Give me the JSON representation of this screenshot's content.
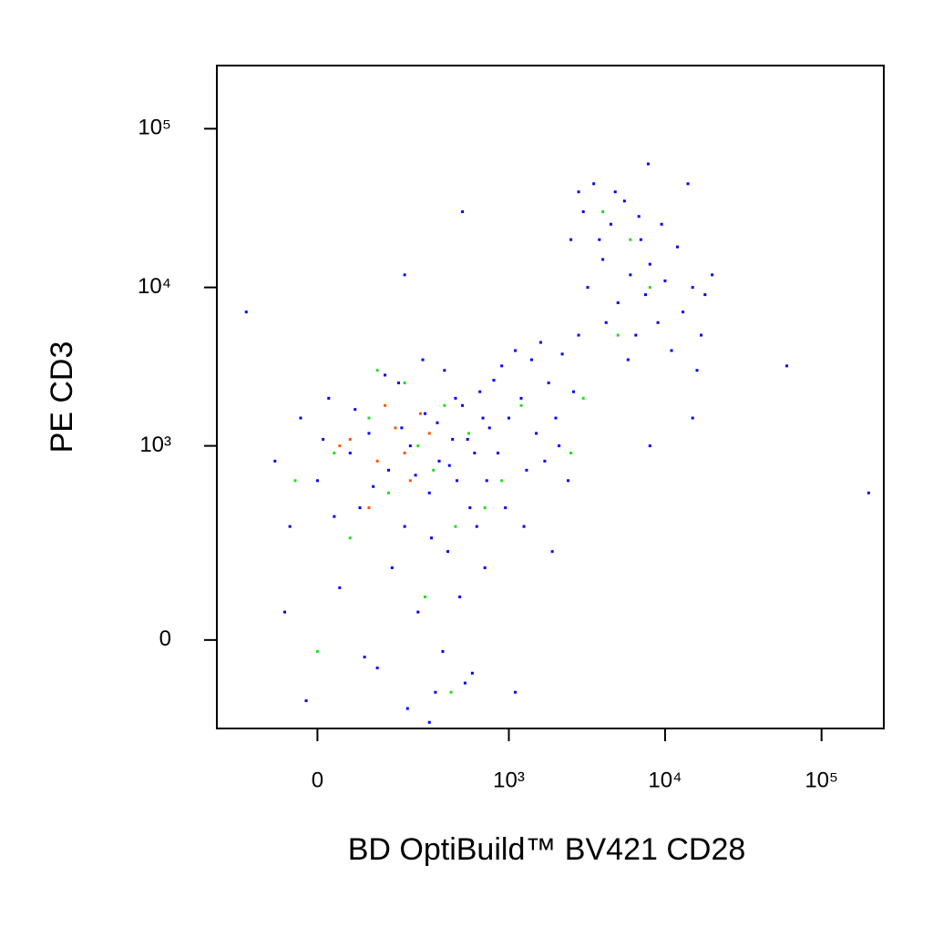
{
  "chart_data": {
    "type": "scatter",
    "xlabel": "BD OptiBuild™ BV421 CD28",
    "ylabel": "PE CD3",
    "xscale": "arcsinh",
    "yscale": "arcsinh",
    "xlim": [
      -250,
      250000
    ],
    "ylim": [
      -200,
      250000
    ],
    "xticks": [
      0,
      {
        "value": 1000,
        "label": "10³"
      },
      {
        "value": 10000,
        "label": "10⁴"
      },
      {
        "value": 100000,
        "label": "10⁵"
      }
    ],
    "yticks": [
      0,
      {
        "value": 1000,
        "label": "10³"
      },
      {
        "value": 10000,
        "label": "10⁴"
      },
      {
        "value": 100000,
        "label": "10⁵"
      }
    ],
    "series": [
      {
        "color": "#0000ff",
        "x": [
          -80,
          -50,
          -30,
          0,
          20,
          40,
          60,
          80,
          100,
          120,
          150,
          180,
          200,
          220,
          250,
          280,
          300,
          330,
          350,
          380,
          400,
          430,
          460,
          500,
          520,
          560,
          600,
          650,
          700,
          750,
          -60,
          -20,
          10,
          30,
          70,
          90,
          110,
          140,
          160,
          190,
          210,
          240,
          270,
          310,
          340,
          370,
          410,
          450,
          480,
          540,
          580,
          620,
          680,
          720,
          800,
          850,
          900,
          950,
          1000,
          1100,
          1200,
          1300,
          1400,
          1500,
          1600,
          1700,
          1800,
          2000,
          2200,
          2400,
          2600,
          2800,
          1100,
          1250,
          1900,
          2100,
          2500,
          3000,
          3500,
          4000,
          4500,
          5000,
          5500,
          6000,
          6500,
          7000,
          7500,
          8000,
          9000,
          10000,
          11000,
          12000,
          13000,
          15000,
          17000,
          20000,
          3200,
          4200,
          4800,
          5800,
          6800,
          2800,
          3800,
          9500,
          14000,
          7800,
          16000,
          18000,
          60000,
          200000,
          15000,
          500,
          -150,
          200,
          300,
          8000
        ],
        "values": [
          800,
          300,
          1500,
          600,
          2000,
          100,
          900,
          400,
          1200,
          -50,
          700,
          2500,
          300,
          1000,
          50,
          1600,
          500,
          -100,
          800,
          3000,
          200,
          1100,
          600,
          1800,
          -80,
          400,
          900,
          2200,
          150,
          1300,
          50,
          -120,
          1100,
          350,
          1700,
          -30,
          550,
          2800,
          150,
          1300,
          -140,
          650,
          3500,
          250,
          1400,
          -20,
          750,
          2000,
          80,
          1100,
          -60,
          300,
          1500,
          600,
          2600,
          900,
          3200,
          400,
          1500,
          -100,
          2000,
          700,
          3500,
          1200,
          4500,
          800,
          2500,
          1500,
          3800,
          600,
          2200,
          5000,
          4000,
          300,
          200,
          1000,
          20000,
          30000,
          45000,
          15000,
          25000,
          8000,
          35000,
          12000,
          5000,
          20000,
          9000,
          14000,
          6000,
          11000,
          4000,
          18000,
          7000,
          10000,
          5000,
          12000,
          10000,
          6000,
          40000,
          3500,
          28000,
          40000,
          20000,
          25000,
          45000,
          60000,
          3000,
          9000,
          3200,
          500,
          1500,
          30000,
          7000,
          12000,
          -180,
          1000
        ]
      },
      {
        "color": "#22dd22",
        "x": [
          30,
          100,
          150,
          200,
          250,
          320,
          380,
          450,
          0,
          60,
          550,
          700,
          1200,
          2500,
          4000,
          6000,
          8000,
          5000,
          3000,
          -40,
          120,
          280,
          420,
          900
        ],
        "values": [
          900,
          1500,
          500,
          2500,
          1000,
          700,
          1800,
          300,
          -20,
          250,
          1200,
          400,
          1800,
          900,
          30000,
          20000,
          10000,
          5000,
          2000,
          600,
          3000,
          80,
          -100,
          600
        ]
      },
      {
        "color": "#ff5500",
        "x": [
          60,
          120,
          170,
          220,
          260,
          100,
          300,
          40,
          200,
          140
        ],
        "values": [
          1100,
          800,
          1300,
          600,
          1600,
          400,
          1200,
          1000,
          900,
          1800
        ]
      }
    ]
  }
}
